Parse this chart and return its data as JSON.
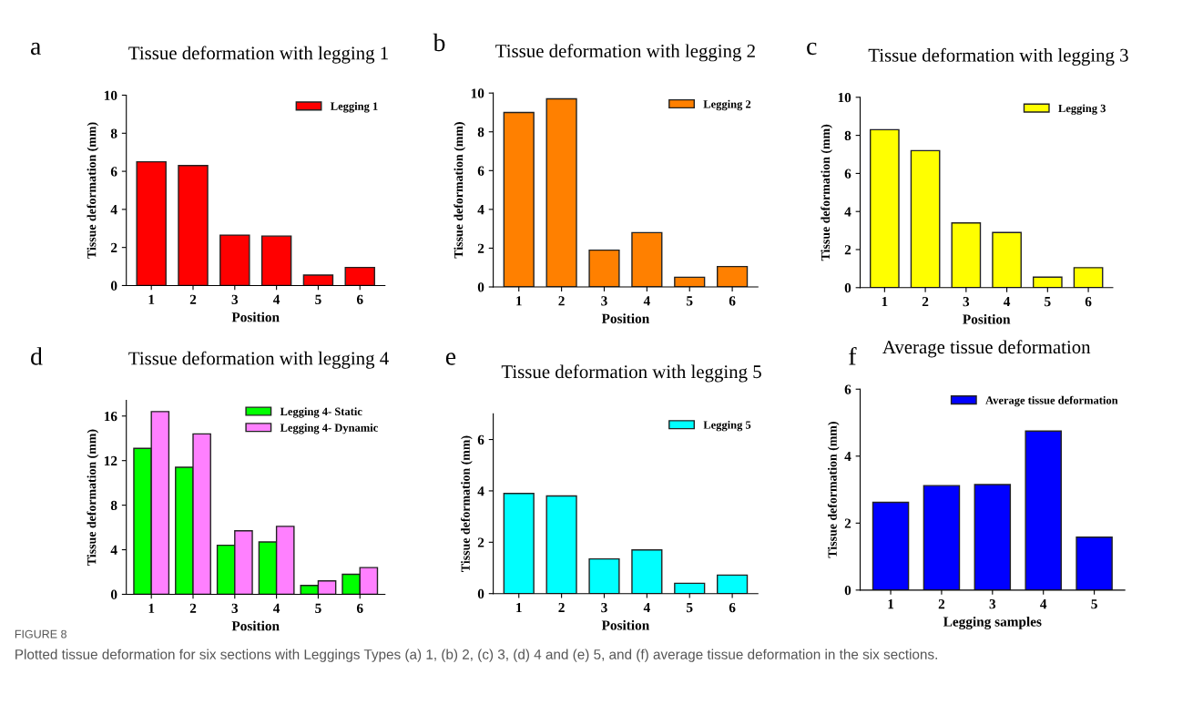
{
  "chart_data": [
    {
      "type": "bar",
      "title": "Tissue deformation with legging 1",
      "annotations": [
        "a"
      ],
      "xlabel": "Position",
      "ylabel": "Tissue deformation (mm)",
      "categories": [
        "1",
        "2",
        "3",
        "4",
        "5",
        "6"
      ],
      "ylim": [
        0,
        10
      ],
      "yticks": [
        0,
        2,
        4,
        6,
        8,
        10
      ],
      "legend": "top right",
      "series": [
        {
          "name": "Legging 1",
          "color": "#ff0000",
          "values": [
            6.5,
            6.3,
            2.65,
            2.6,
            0.55,
            0.95
          ]
        }
      ]
    },
    {
      "type": "bar",
      "title": "Tissue deformation with legging 2",
      "annotations": [
        "b"
      ],
      "xlabel": "Position",
      "ylabel": "Tissue deformation (mm)",
      "categories": [
        "1",
        "2",
        "3",
        "4",
        "5",
        "6"
      ],
      "ylim": [
        0,
        10
      ],
      "yticks": [
        0,
        2,
        4,
        6,
        8,
        10
      ],
      "legend": "top right",
      "series": [
        {
          "name": "Legging 2",
          "color": "#ff8000",
          "values": [
            9.0,
            9.7,
            1.9,
            2.8,
            0.5,
            1.05
          ]
        }
      ]
    },
    {
      "type": "bar",
      "title": "Tissue deformation with legging 3",
      "annotations": [
        "c"
      ],
      "xlabel": "Position",
      "ylabel": "Tissue deformation (mm)",
      "categories": [
        "1",
        "2",
        "3",
        "4",
        "5",
        "6"
      ],
      "ylim": [
        0,
        10
      ],
      "yticks": [
        0,
        2,
        4,
        6,
        8,
        10
      ],
      "legend": "top right",
      "series": [
        {
          "name": "Legging 3",
          "color": "#ffff00",
          "values": [
            8.3,
            7.2,
            3.4,
            2.9,
            0.55,
            1.05
          ]
        }
      ]
    },
    {
      "type": "bar",
      "title": "Tissue deformation with legging 4",
      "annotations": [
        "d"
      ],
      "xlabel": "Position",
      "ylabel": "Tissue deformation (mm)",
      "categories": [
        "1",
        "2",
        "3",
        "4",
        "5",
        "6"
      ],
      "ylim": [
        0,
        17.4
      ],
      "yticks": [
        0,
        4,
        8,
        12,
        16
      ],
      "legend": "top right",
      "series": [
        {
          "name": "Legging 4- Static",
          "color": "#00ff00",
          "values": [
            13.1,
            11.4,
            4.4,
            4.7,
            0.8,
            1.8
          ]
        },
        {
          "name": "Legging 4- Dynamic",
          "color": "#ff80ff",
          "values": [
            16.4,
            14.4,
            5.7,
            6.1,
            1.2,
            2.4
          ]
        }
      ]
    },
    {
      "type": "bar",
      "title": "Tissue deformation with legging 5",
      "annotations": [
        "e"
      ],
      "xlabel": "Position",
      "ylabel": "Tissue deformation (mm)",
      "categories": [
        "1",
        "2",
        "3",
        "4",
        "5",
        "6"
      ],
      "ylim": [
        0,
        7
      ],
      "yticks": [
        0,
        2,
        4,
        6
      ],
      "legend": "top right",
      "series": [
        {
          "name": "Legging 5",
          "color": "#00ffff",
          "values": [
            3.9,
            3.8,
            1.35,
            1.7,
            0.4,
            0.72
          ]
        }
      ]
    },
    {
      "type": "bar",
      "title": "Average tissue deformation",
      "annotations": [
        "f",
        "FIGURE 8",
        "Plotted tissue deformation for six sections with Leggings Types (a) 1, (b) 2, (c) 3, (d) 4 and (e) 5, and (f) average tissue deformation in the six sections."
      ],
      "xlabel": "Legging samples",
      "ylabel": "Tissue deformation (mm)",
      "categories": [
        "1",
        "2",
        "3",
        "4",
        "5"
      ],
      "ylim": [
        0,
        6
      ],
      "yticks": [
        0,
        2,
        4,
        6
      ],
      "legend": "top right",
      "series": [
        {
          "name": "Average tissue deformation",
          "color": "#0000ff",
          "values": [
            2.62,
            3.12,
            3.15,
            4.75,
            1.58
          ]
        }
      ]
    }
  ]
}
